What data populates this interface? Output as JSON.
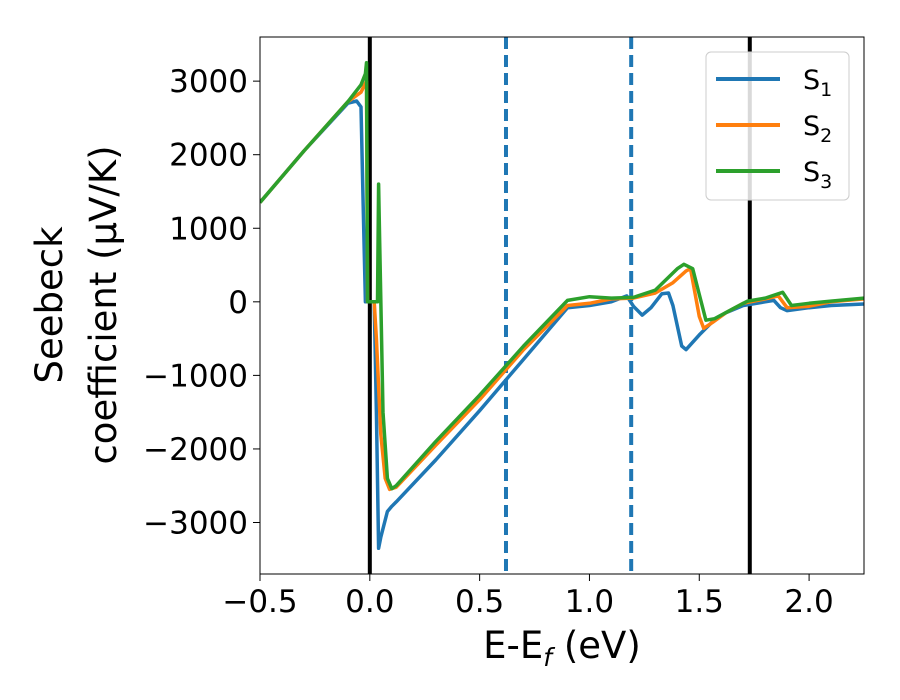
{
  "chart_data": {
    "type": "line",
    "xlabel": "E-E",
    "xlabel_sub": "f",
    "xlabel_unit": " (eV)",
    "ylabel_line1": "Seebeck",
    "ylabel_line2": "coefficient  (μV/K)",
    "xlim": [
      -0.5,
      2.25
    ],
    "ylim": [
      -3700,
      3600
    ],
    "xticks": [
      -0.5,
      0.0,
      0.5,
      1.0,
      1.5,
      2.0
    ],
    "xtick_labels": [
      "−0.5",
      "0.0",
      "0.5",
      "1.0",
      "1.5",
      "2.0"
    ],
    "yticks": [
      -3000,
      -2000,
      -1000,
      0,
      1000,
      2000,
      3000
    ],
    "ytick_labels": [
      "−3000",
      "−2000",
      "−1000",
      "0",
      "1000",
      "2000",
      "3000"
    ],
    "grid": false,
    "legend_position": "top-right",
    "vlines": [
      {
        "x": 0.0,
        "style": "solid",
        "color": "#000000"
      },
      {
        "x": 1.73,
        "style": "solid",
        "color": "#000000"
      },
      {
        "x": 0.62,
        "style": "dashed",
        "color": "#1f77b4"
      },
      {
        "x": 1.19,
        "style": "dashed",
        "color": "#1f77b4"
      }
    ],
    "series": [
      {
        "name": "S",
        "name_sub": "1",
        "color": "#1f77b4",
        "points": [
          [
            -0.5,
            1350
          ],
          [
            -0.3,
            2050
          ],
          [
            -0.1,
            2700
          ],
          [
            -0.06,
            2730
          ],
          [
            -0.04,
            2650
          ],
          [
            -0.03,
            1300
          ],
          [
            -0.02,
            0
          ],
          [
            0.0,
            0
          ],
          [
            0.02,
            0
          ],
          [
            0.03,
            -1500
          ],
          [
            0.04,
            -3350
          ],
          [
            0.05,
            -3200
          ],
          [
            0.08,
            -2850
          ],
          [
            0.1,
            -2780
          ],
          [
            0.12,
            -2720
          ],
          [
            0.3,
            -2150
          ],
          [
            0.5,
            -1480
          ],
          [
            0.7,
            -780
          ],
          [
            0.9,
            -80
          ],
          [
            1.0,
            -50
          ],
          [
            1.1,
            0
          ],
          [
            1.17,
            80
          ],
          [
            1.2,
            -60
          ],
          [
            1.24,
            -180
          ],
          [
            1.28,
            -80
          ],
          [
            1.33,
            110
          ],
          [
            1.36,
            120
          ],
          [
            1.38,
            -50
          ],
          [
            1.42,
            -600
          ],
          [
            1.44,
            -650
          ],
          [
            1.5,
            -450
          ],
          [
            1.56,
            -270
          ],
          [
            1.62,
            -150
          ],
          [
            1.7,
            -50
          ],
          [
            1.8,
            0
          ],
          [
            1.84,
            20
          ],
          [
            1.87,
            -80
          ],
          [
            1.9,
            -120
          ],
          [
            2.0,
            -80
          ],
          [
            2.1,
            -50
          ],
          [
            2.25,
            -30
          ]
        ]
      },
      {
        "name": "S",
        "name_sub": "2",
        "color": "#ff7f0e",
        "points": [
          [
            -0.5,
            1350
          ],
          [
            -0.3,
            2050
          ],
          [
            -0.1,
            2720
          ],
          [
            -0.04,
            2850
          ],
          [
            -0.015,
            3000
          ],
          [
            -0.01,
            0
          ],
          [
            0.0,
            0
          ],
          [
            0.02,
            0
          ],
          [
            0.03,
            -500
          ],
          [
            0.05,
            -1800
          ],
          [
            0.07,
            -2400
          ],
          [
            0.09,
            -2550
          ],
          [
            0.12,
            -2520
          ],
          [
            0.3,
            -1950
          ],
          [
            0.5,
            -1330
          ],
          [
            0.7,
            -650
          ],
          [
            0.9,
            -50
          ],
          [
            1.0,
            -20
          ],
          [
            1.1,
            40
          ],
          [
            1.2,
            50
          ],
          [
            1.3,
            120
          ],
          [
            1.38,
            260
          ],
          [
            1.44,
            420
          ],
          [
            1.46,
            450
          ],
          [
            1.5,
            -200
          ],
          [
            1.52,
            -360
          ],
          [
            1.56,
            -280
          ],
          [
            1.62,
            -150
          ],
          [
            1.7,
            -20
          ],
          [
            1.8,
            40
          ],
          [
            1.86,
            80
          ],
          [
            1.9,
            -80
          ],
          [
            2.0,
            -60
          ],
          [
            2.1,
            0
          ],
          [
            2.25,
            40
          ]
        ]
      },
      {
        "name": "S",
        "name_sub": "3",
        "color": "#2ca02c",
        "points": [
          [
            -0.5,
            1350
          ],
          [
            -0.3,
            2050
          ],
          [
            -0.1,
            2720
          ],
          [
            -0.04,
            2950
          ],
          [
            -0.02,
            3100
          ],
          [
            -0.015,
            3250
          ],
          [
            -0.01,
            0
          ],
          [
            0.0,
            0
          ],
          [
            0.035,
            0
          ],
          [
            0.04,
            1600
          ],
          [
            0.045,
            800
          ],
          [
            0.06,
            -1500
          ],
          [
            0.08,
            -2400
          ],
          [
            0.1,
            -2540
          ],
          [
            0.12,
            -2500
          ],
          [
            0.3,
            -1900
          ],
          [
            0.5,
            -1270
          ],
          [
            0.7,
            -600
          ],
          [
            0.9,
            20
          ],
          [
            1.0,
            70
          ],
          [
            1.1,
            50
          ],
          [
            1.2,
            60
          ],
          [
            1.3,
            160
          ],
          [
            1.4,
            450
          ],
          [
            1.43,
            510
          ],
          [
            1.47,
            450
          ],
          [
            1.5,
            100
          ],
          [
            1.53,
            -250
          ],
          [
            1.57,
            -230
          ],
          [
            1.65,
            -100
          ],
          [
            1.72,
            10
          ],
          [
            1.8,
            50
          ],
          [
            1.88,
            130
          ],
          [
            1.92,
            -50
          ],
          [
            2.0,
            -20
          ],
          [
            2.1,
            10
          ],
          [
            2.25,
            50
          ]
        ]
      }
    ]
  }
}
